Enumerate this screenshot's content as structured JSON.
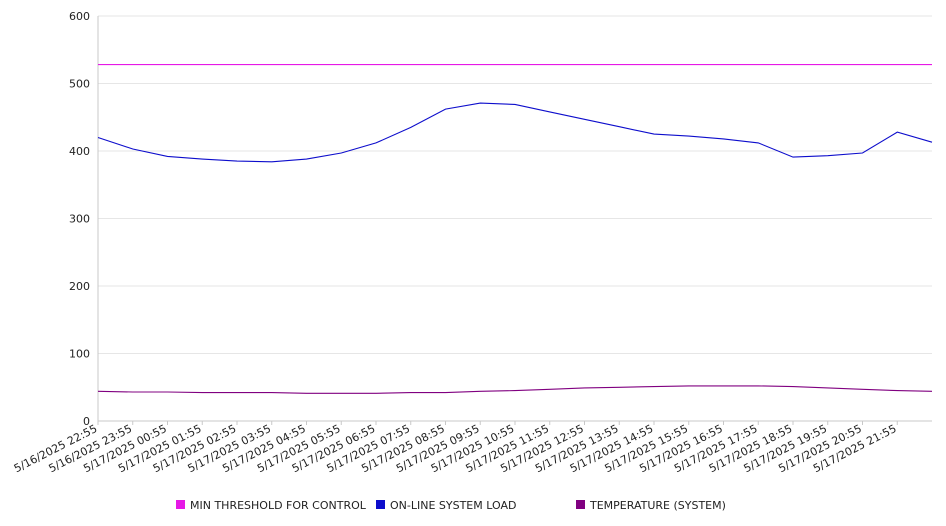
{
  "chart_data": {
    "type": "line",
    "title": "",
    "xlabel": "",
    "ylabel": "",
    "ylim": [
      0,
      600
    ],
    "yticks": [
      0,
      100,
      200,
      300,
      400,
      500,
      600
    ],
    "grid": true,
    "legend_position": "bottom",
    "x_tick_labels": [
      "5/16/2025 22:55",
      "5/16/2025 23:55",
      "5/17/2025 00:55",
      "5/17/2025 01:55",
      "5/17/2025 02:55",
      "5/17/2025 03:55",
      "5/17/2025 04:55",
      "5/17/2025 05:55",
      "5/17/2025 06:55",
      "5/17/2025 07:55",
      "5/17/2025 08:55",
      "5/17/2025 09:55",
      "5/17/2025 10:55",
      "5/17/2025 11:55",
      "5/17/2025 12:55",
      "5/17/2025 13:55",
      "5/17/2025 14:55",
      "5/17/2025 15:55",
      "5/17/2025 16:55",
      "5/17/2025 17:55",
      "5/17/2025 18:55",
      "5/17/2025 19:55",
      "5/17/2025 20:55",
      "5/17/2025 21:55"
    ],
    "series": [
      {
        "name": "MIN THRESHOLD FOR CONTROL",
        "color": "#e619e6",
        "values": [
          528,
          528,
          528,
          528,
          528,
          528,
          528,
          528,
          528,
          528,
          528,
          528,
          528,
          528,
          528,
          528,
          528,
          528,
          528,
          528,
          528,
          528,
          528,
          528,
          528
        ]
      },
      {
        "name": "ON-LINE SYSTEM LOAD",
        "color": "#0d0dcc",
        "values": [
          420,
          403,
          392,
          388,
          385,
          384,
          388,
          397,
          412,
          435,
          462,
          471,
          469,
          458,
          447,
          436,
          425,
          422,
          418,
          412,
          391,
          393,
          397,
          428,
          413
        ]
      },
      {
        "name": "TEMPERATURE (SYSTEM)",
        "color": "#800080",
        "values": [
          44,
          43,
          43,
          42,
          42,
          42,
          41,
          41,
          41,
          42,
          42,
          44,
          45,
          47,
          49,
          50,
          51,
          52,
          52,
          52,
          51,
          49,
          47,
          45,
          44
        ]
      }
    ]
  }
}
